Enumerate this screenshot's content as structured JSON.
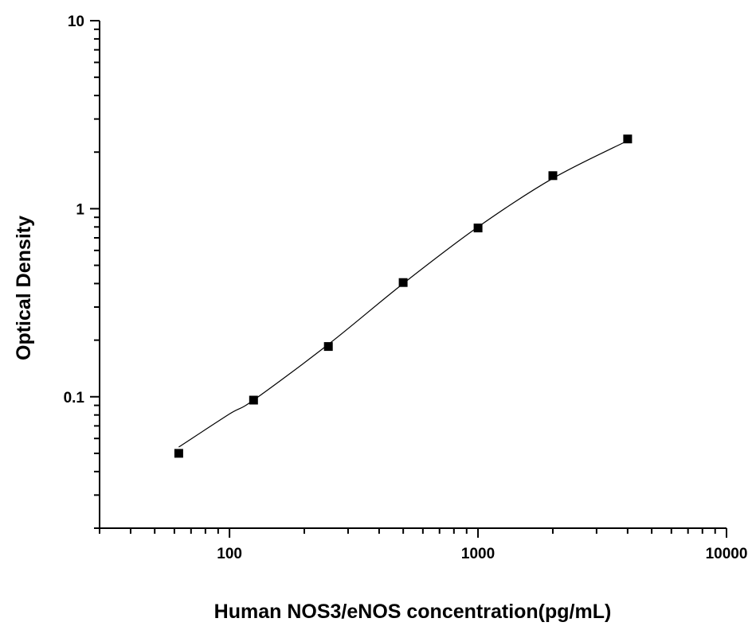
{
  "chart_data": {
    "type": "scatter",
    "xlabel": "Human NOS3/eNOS concentration(pg/mL)",
    "ylabel": "Optical Density",
    "x_scale": "log",
    "y_scale": "log",
    "xlim": [
      30,
      10000
    ],
    "ylim": [
      0.02,
      10
    ],
    "x_ticks": [
      "100",
      "1000",
      "10000"
    ],
    "y_ticks": [
      "0.1",
      "1",
      "10"
    ],
    "grid": false,
    "series": [
      {
        "x": [
          62.5,
          125,
          250,
          500,
          1000,
          2000,
          4000
        ],
        "y": [
          0.05,
          0.096,
          0.185,
          0.405,
          0.79,
          1.5,
          2.35
        ]
      }
    ],
    "fit_curve": {
      "x": [
        62.5,
        100,
        125,
        250,
        500,
        1000,
        2000,
        4000
      ],
      "y": [
        0.054,
        0.081,
        0.096,
        0.19,
        0.4,
        0.8,
        1.45,
        2.3
      ]
    },
    "marker": "square",
    "color": "#000000"
  }
}
